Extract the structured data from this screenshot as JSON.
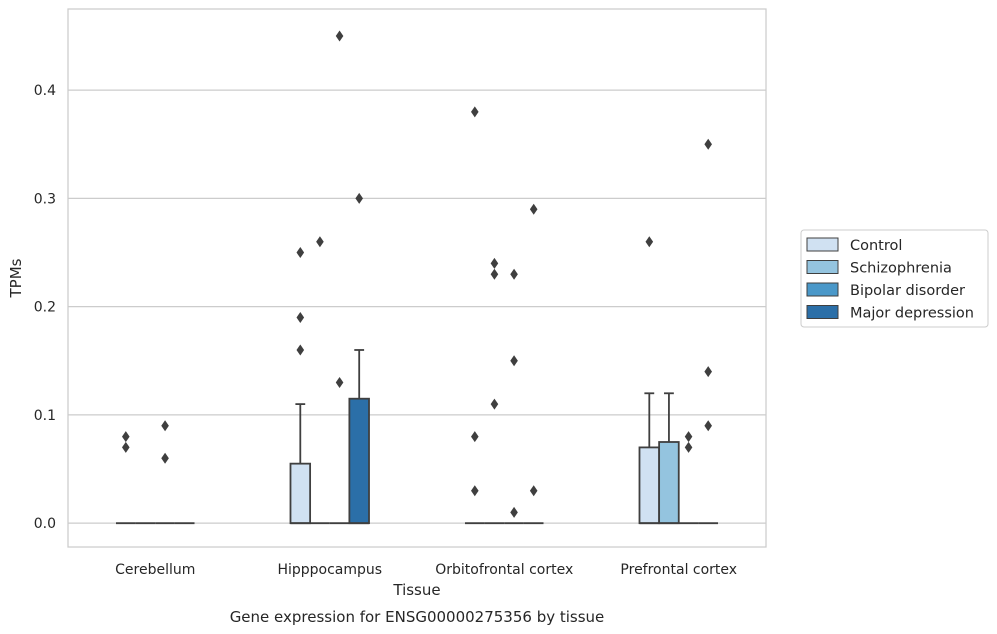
{
  "chart_data": {
    "type": "box",
    "title": "Gene expression for ENSG00000275356 by tissue",
    "xlabel": "Tissue",
    "ylabel": "TPMs",
    "ylim": [
      -0.022,
      0.475
    ],
    "yticks": [
      0.0,
      0.1,
      0.2,
      0.3,
      0.4
    ],
    "ytick_labels": [
      "0.0",
      "0.1",
      "0.2",
      "0.3",
      "0.4"
    ],
    "grid": true,
    "legend_position": "right",
    "categories": [
      "Cerebellum",
      "Hipppocampus",
      "Orbitofrontal cortex",
      "Prefrontal cortex"
    ],
    "series": [
      {
        "name": "Control",
        "color": "#d0e1f2",
        "boxes": [
          {
            "q1": 0,
            "median": 0,
            "q3": 0,
            "whisker_low": 0,
            "whisker_high": 0,
            "outliers": [
              0.07,
              0.08
            ]
          },
          {
            "q1": 0,
            "median": 0,
            "q3": 0.055,
            "whisker_low": 0,
            "whisker_high": 0.11,
            "outliers": [
              0.16,
              0.19,
              0.25
            ]
          },
          {
            "q1": 0,
            "median": 0,
            "q3": 0,
            "whisker_low": 0,
            "whisker_high": 0,
            "outliers": [
              0.03,
              0.08,
              0.38
            ]
          },
          {
            "q1": 0,
            "median": 0,
            "q3": 0.07,
            "whisker_low": 0,
            "whisker_high": 0.12,
            "outliers": [
              0.26
            ]
          }
        ]
      },
      {
        "name": "Schizophrenia",
        "color": "#94c4df",
        "boxes": [
          {
            "q1": 0,
            "median": 0,
            "q3": 0,
            "whisker_low": 0,
            "whisker_high": 0,
            "outliers": []
          },
          {
            "q1": 0,
            "median": 0,
            "q3": 0,
            "whisker_low": 0,
            "whisker_high": 0,
            "outliers": [
              0.26
            ]
          },
          {
            "q1": 0,
            "median": 0,
            "q3": 0,
            "whisker_low": 0,
            "whisker_high": 0,
            "outliers": [
              0.11,
              0.23,
              0.24
            ]
          },
          {
            "q1": 0,
            "median": 0,
            "q3": 0.075,
            "whisker_low": 0,
            "whisker_high": 0.12,
            "outliers": []
          }
        ]
      },
      {
        "name": "Bipolar disorder",
        "color": "#4a98c9",
        "boxes": [
          {
            "q1": 0,
            "median": 0,
            "q3": 0,
            "whisker_low": 0,
            "whisker_high": 0,
            "outliers": [
              0.06,
              0.09
            ]
          },
          {
            "q1": 0,
            "median": 0,
            "q3": 0,
            "whisker_low": 0,
            "whisker_high": 0,
            "outliers": [
              0.13,
              0.45
            ]
          },
          {
            "q1": 0,
            "median": 0,
            "q3": 0,
            "whisker_low": 0,
            "whisker_high": 0,
            "outliers": [
              0.01,
              0.15,
              0.23
            ]
          },
          {
            "q1": 0,
            "median": 0,
            "q3": 0,
            "whisker_low": 0,
            "whisker_high": 0,
            "outliers": [
              0.07,
              0.08
            ]
          }
        ]
      },
      {
        "name": "Major depression",
        "color": "#2b6fa8",
        "boxes": [
          {
            "q1": 0,
            "median": 0,
            "q3": 0,
            "whisker_low": 0,
            "whisker_high": 0,
            "outliers": []
          },
          {
            "q1": 0,
            "median": 0,
            "q3": 0.115,
            "whisker_low": 0,
            "whisker_high": 0.16,
            "outliers": [
              0.3
            ]
          },
          {
            "q1": 0,
            "median": 0,
            "q3": 0,
            "whisker_low": 0,
            "whisker_high": 0,
            "outliers": [
              0.03,
              0.29
            ]
          },
          {
            "q1": 0,
            "median": 0,
            "q3": 0,
            "whisker_low": 0,
            "whisker_high": 0,
            "outliers": [
              0.09,
              0.14,
              0.35
            ]
          }
        ]
      }
    ]
  }
}
